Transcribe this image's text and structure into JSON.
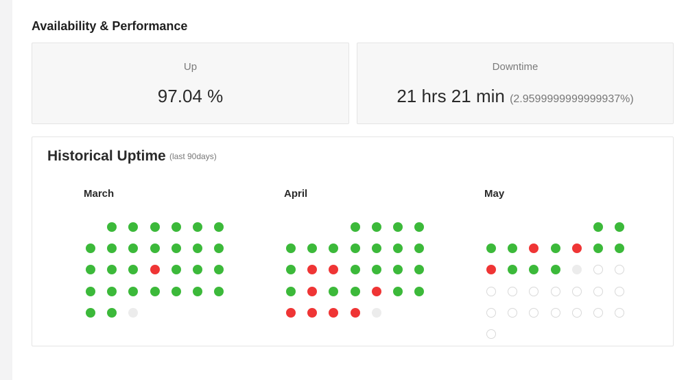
{
  "section_title": "Availability & Performance",
  "stats": {
    "up_label": "Up",
    "up_value": "97.04 %",
    "downtime_label": "Downtime",
    "downtime_value": "21 hrs 21 min",
    "downtime_percent": "(2.9599999999999937%)"
  },
  "history": {
    "title": "Historical Uptime",
    "subtitle": "(last 90days)",
    "colors": {
      "up": "#3cb93a",
      "down": "#ef3535",
      "nodata": "#ececec",
      "future": "#ffffff"
    },
    "months": [
      {
        "name": "March",
        "offset": 1,
        "days": [
          "up",
          "up",
          "up",
          "up",
          "up",
          "up",
          "up",
          "up",
          "up",
          "up",
          "up",
          "up",
          "up",
          "up",
          "up",
          "up",
          "down",
          "up",
          "up",
          "up",
          "up",
          "up",
          "up",
          "up",
          "up",
          "up",
          "up",
          "up",
          "up",
          "nodata"
        ]
      },
      {
        "name": "April",
        "offset": 3,
        "days": [
          "up",
          "up",
          "up",
          "up",
          "up",
          "up",
          "up",
          "up",
          "up",
          "up",
          "up",
          "up",
          "down",
          "down",
          "up",
          "up",
          "up",
          "up",
          "up",
          "down",
          "up",
          "up",
          "down",
          "up",
          "up",
          "down",
          "down",
          "down",
          "down",
          "nodata"
        ]
      },
      {
        "name": "May",
        "offset": 5,
        "days": [
          "up",
          "up",
          "up",
          "up",
          "down",
          "up",
          "down",
          "up",
          "up",
          "down",
          "up",
          "up",
          "up",
          "nodata",
          "future",
          "future",
          "future",
          "future",
          "future",
          "future",
          "future",
          "future",
          "future",
          "future",
          "future",
          "future",
          "future",
          "future",
          "future",
          "future",
          "future"
        ]
      }
    ]
  }
}
